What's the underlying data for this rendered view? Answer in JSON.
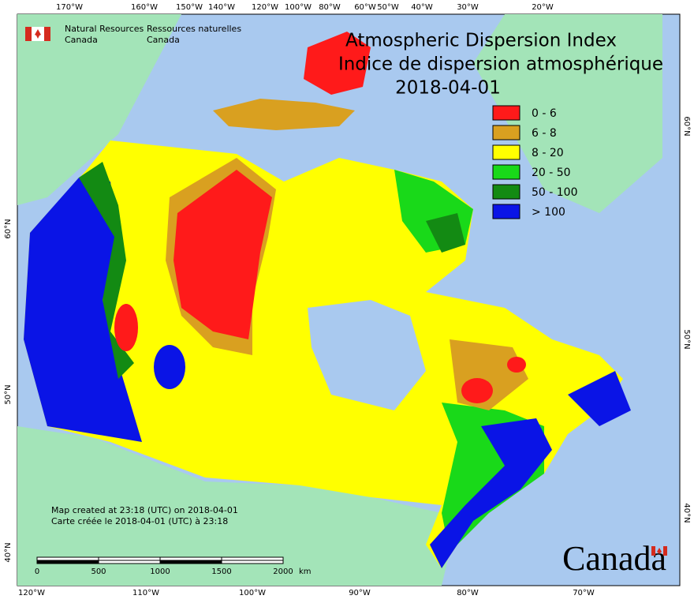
{
  "header": {
    "agency_en": [
      "Natural Resources",
      "Canada"
    ],
    "agency_fr": [
      "Ressources naturelles",
      "Canada"
    ]
  },
  "title": {
    "en": "Atmospheric Dispersion Index",
    "fr": "Indice de dispersion atmosphérique",
    "date": "2018-04-01"
  },
  "legend": [
    {
      "label": "0 - 6",
      "color": "#ff1a1a"
    },
    {
      "label": "6 - 8",
      "color": "#d9a020"
    },
    {
      "label": "8 - 20",
      "color": "#ffff00"
    },
    {
      "label": "20 - 50",
      "color": "#19d919"
    },
    {
      "label": "50 - 100",
      "color": "#138a13"
    },
    {
      "label": "> 100",
      "color": "#0a14e6"
    }
  ],
  "graticule": {
    "top": [
      "170°W",
      "160°W",
      "150°W",
      "140°W",
      "120°W",
      "100°W",
      "80°W",
      "60°W",
      "50°W",
      "40°W",
      "30°W",
      "20°W"
    ],
    "bottom": [
      "120°W",
      "110°W",
      "100°W",
      "90°W",
      "80°W",
      "70°W"
    ],
    "left": [
      "60°N",
      "50°N",
      "40°N"
    ],
    "right": [
      "60°N",
      "50°N",
      "40°N"
    ]
  },
  "footer": {
    "created_en": "Map created at 23:18 (UTC) on 2018-04-01",
    "created_fr": "Carte créée le 2018-04-01 (UTC) à 23:18"
  },
  "scale_bar": {
    "labels": [
      0,
      500,
      1000,
      1500,
      2000
    ],
    "unit": "km"
  },
  "wordmark": "Canada"
}
